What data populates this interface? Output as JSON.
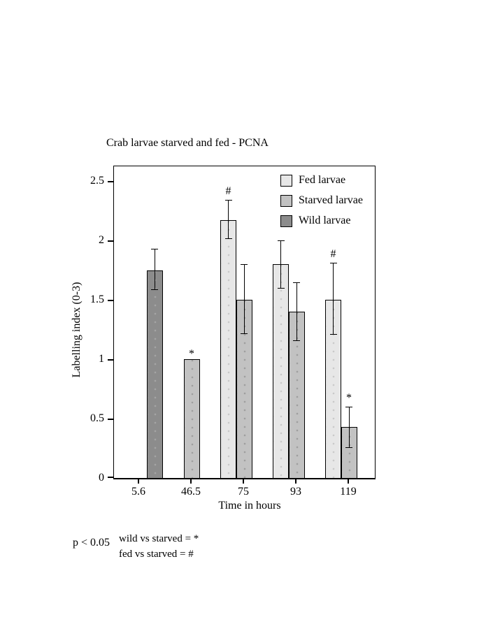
{
  "page": {
    "background": "#ffffff"
  },
  "chart_data": {
    "type": "bar",
    "title": "Crab larvae starved and fed - PCNA",
    "xlabel": "Time in hours",
    "ylabel": "Labelling index (0-3)",
    "categories": [
      "5.6",
      "46.5",
      "75",
      "93",
      "119"
    ],
    "yticks": [
      0,
      0.5,
      1,
      1.5,
      2,
      2.5
    ],
    "ylim": [
      0,
      2.62
    ],
    "grid": false,
    "legend_position": "top-right-inside",
    "error_bars": true,
    "series": [
      {
        "key": "fed",
        "name": "Fed larvae",
        "color": "#e7e7e7",
        "dot_color": "#c9c9c9",
        "values": [
          null,
          null,
          2.17,
          1.8,
          1.5
        ],
        "errors": [
          null,
          null,
          [
            2.02,
            2.34
          ],
          [
            1.6,
            2.0
          ],
          [
            1.21,
            1.81
          ]
        ],
        "annotations": [
          null,
          null,
          "#",
          null,
          "#"
        ]
      },
      {
        "key": "starved",
        "name": "Starved larvae",
        "color": "#c2c2c2",
        "dot_color": "#9e9e9e",
        "values": [
          null,
          1.0,
          1.5,
          1.4,
          0.43
        ],
        "errors": [
          null,
          null,
          [
            1.22,
            1.8
          ],
          [
            1.16,
            1.65
          ],
          [
            0.26,
            0.6
          ]
        ],
        "annotations": [
          null,
          "*",
          null,
          null,
          "*"
        ]
      },
      {
        "key": "wild",
        "name": "Wild larvae",
        "color": "#8c8c8c",
        "dot_color": "#a5a5a5",
        "values": [
          1.75,
          null,
          null,
          null,
          null
        ],
        "errors": [
          [
            1.59,
            1.93
          ],
          null,
          null,
          null,
          null
        ],
        "annotations": [
          null,
          null,
          null,
          null,
          null
        ]
      }
    ],
    "notes": {
      "p_value": "p < 0.05",
      "line1": "wild vs starved = *",
      "line2": "fed vs starved = #"
    }
  }
}
